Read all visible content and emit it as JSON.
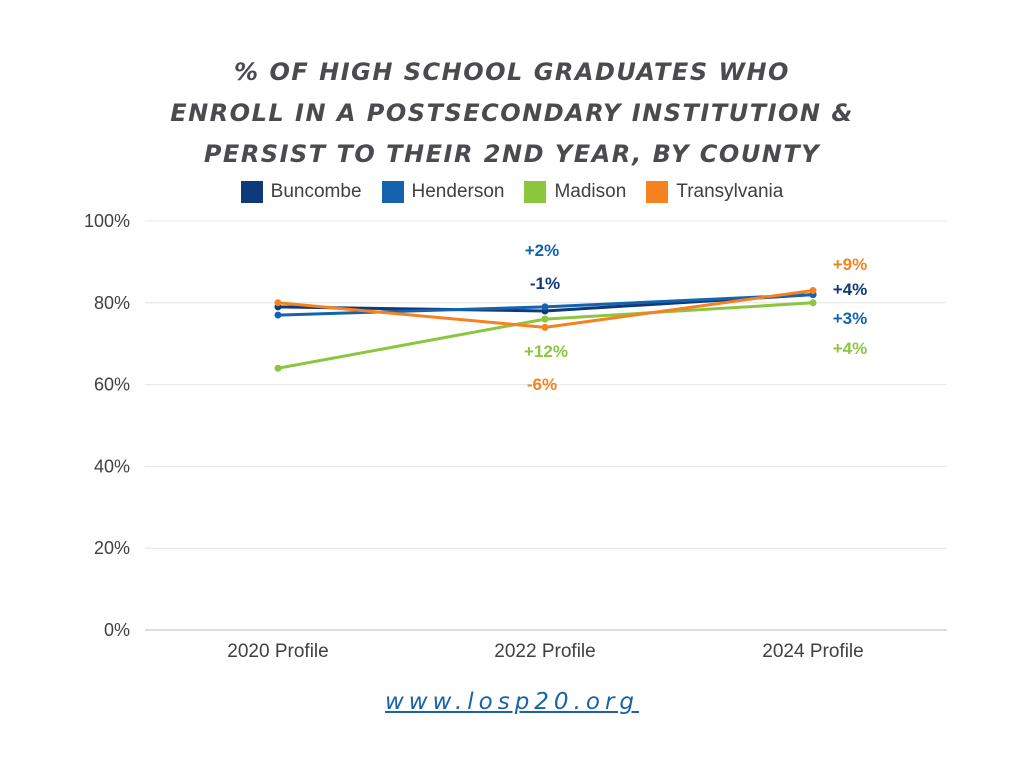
{
  "title_lines": [
    "% OF HIGH SCHOOL GRADUATES WHO",
    "ENROLL IN A POSTSECONDARY INSTITUTION &",
    "PERSIST TO THEIR 2ND YEAR, BY COUNTY"
  ],
  "footer": {
    "link_text": "www.losp20.org"
  },
  "chart_data": {
    "type": "line",
    "title": "% OF HIGH SCHOOL GRADUATES WHO ENROLL IN A POSTSECONDARY INSTITUTION & PERSIST TO THEIR 2ND YEAR, BY COUNTY",
    "categories": [
      "2020 Profile",
      "2022 Profile",
      "2024 Profile"
    ],
    "ylim": [
      0,
      100
    ],
    "yticks": [
      0,
      20,
      40,
      60,
      80,
      100
    ],
    "ytick_labels": [
      "0%",
      "20%",
      "40%",
      "60%",
      "80%",
      "100%"
    ],
    "grid": true,
    "legend_position": "top",
    "series": [
      {
        "name": "Buncombe",
        "color": "#0f3a7a",
        "values": [
          79,
          78,
          82
        ],
        "change_labels": [
          "",
          "-1%",
          "+4%"
        ]
      },
      {
        "name": "Henderson",
        "color": "#1663ad",
        "values": [
          77,
          79,
          82
        ],
        "change_labels": [
          "",
          "+2%",
          "+3%"
        ]
      },
      {
        "name": "Madison",
        "color": "#8cc63f",
        "values": [
          64,
          76,
          80
        ],
        "change_labels": [
          "",
          "+12%",
          "+4%"
        ]
      },
      {
        "name": "Transylvania",
        "color": "#f5821f",
        "values": [
          80,
          74,
          83
        ],
        "change_labels": [
          "",
          "-6%",
          "+9%"
        ]
      }
    ]
  }
}
